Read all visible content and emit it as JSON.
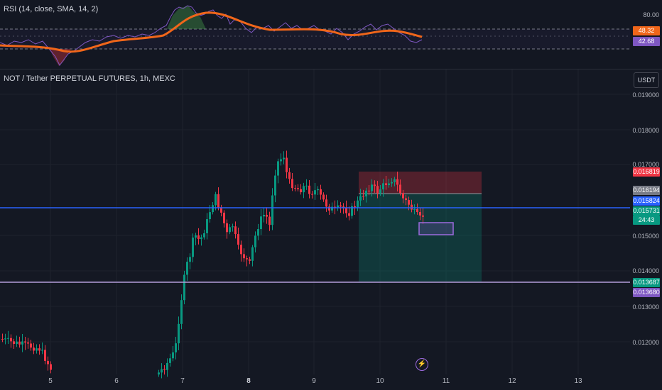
{
  "rsi": {
    "title": "RSI (14, close, SMA, 14, 2)",
    "scale": [
      "80.00"
    ],
    "tag_upper": "48.32",
    "tag_lower": "42.68",
    "colors": {
      "rsi_line": "#7e57c2",
      "sma_line": "#f0661a",
      "upper_band_fill": "#4caf50",
      "lower_band_fill": "#f23645"
    }
  },
  "main": {
    "title": "NOT / Tether PERPETUAL FUTURES, 1h, MEXC",
    "currency": "USDT",
    "price_ticks": [
      "0.019000",
      "0.018000",
      "0.017000",
      "0.015000",
      "0.014000",
      "0.013000",
      "0.012000"
    ],
    "tags": [
      {
        "value": "0.016819",
        "color": "#f23645"
      },
      {
        "value": "0.016194",
        "color": "#787b86"
      },
      {
        "value": "0.015824",
        "color": "#2962ff"
      },
      {
        "value": "0.015731",
        "color": "#089981"
      },
      {
        "value": "24:43",
        "color": "#089981"
      },
      {
        "value": "0.013687",
        "color": "#089981"
      },
      {
        "value": "0.013680",
        "color": "#7e57c2"
      }
    ],
    "time_ticks": [
      "5",
      "6",
      "7",
      "8",
      "9",
      "10",
      "11",
      "12",
      "13"
    ],
    "flash_icon": "lightning-bolt-icon",
    "colors": {
      "up": "#089981",
      "down": "#f23645",
      "support_line": "#b39ddb",
      "resistance_line": "#2962ff"
    }
  },
  "chart_data": {
    "type": "candlestick",
    "symbol": "NOT/USDT",
    "horizontal_lines": [
      0.015824,
      0.01368
    ],
    "position": {
      "entry": 0.016194,
      "stop": 0.016819,
      "target": 0.013687
    }
  }
}
